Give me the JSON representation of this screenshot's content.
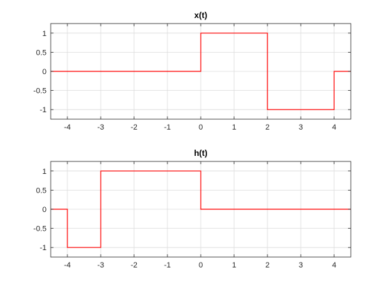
{
  "figure": {
    "background": "#ffffff",
    "axis_color": "#262626",
    "grid_color": "#dcdcdc"
  },
  "chart_data": [
    {
      "type": "line",
      "title": "x(t)",
      "xlabel": "",
      "ylabel": "",
      "xlim": [
        -4.5,
        4.5
      ],
      "ylim": [
        -1.25,
        1.25
      ],
      "xticks": [
        -4,
        -3,
        -2,
        -1,
        0,
        1,
        2,
        3,
        4
      ],
      "xtick_labels": [
        "-4",
        "-3",
        "-2",
        "-1",
        "0",
        "1",
        "2",
        "3",
        "4"
      ],
      "yticks": [
        -1,
        -0.5,
        0,
        0.5,
        1
      ],
      "ytick_labels": [
        "-1",
        "-0.5",
        "0",
        "0.5",
        "1"
      ],
      "grid": true,
      "series": [
        {
          "color": "#ff0000",
          "x": [
            -4.5,
            0,
            0,
            2,
            2,
            4,
            4,
            4.5
          ],
          "y": [
            0,
            0,
            1,
            1,
            -1,
            -1,
            0,
            0
          ]
        }
      ]
    },
    {
      "type": "line",
      "title": "h(t)",
      "xlabel": "",
      "ylabel": "",
      "xlim": [
        -4.5,
        4.5
      ],
      "ylim": [
        -1.25,
        1.25
      ],
      "xticks": [
        -4,
        -3,
        -2,
        -1,
        0,
        1,
        2,
        3,
        4
      ],
      "xtick_labels": [
        "-4",
        "-3",
        "-2",
        "-1",
        "0",
        "1",
        "2",
        "3",
        "4"
      ],
      "yticks": [
        -1,
        -0.5,
        0,
        0.5,
        1
      ],
      "ytick_labels": [
        "-1",
        "-0.5",
        "0",
        "0.5",
        "1"
      ],
      "grid": true,
      "series": [
        {
          "color": "#ff0000",
          "x": [
            -4.5,
            -4,
            -4,
            -3,
            -3,
            0,
            0,
            4.5
          ],
          "y": [
            0,
            0,
            -1,
            -1,
            1,
            1,
            0,
            0
          ]
        }
      ]
    }
  ]
}
